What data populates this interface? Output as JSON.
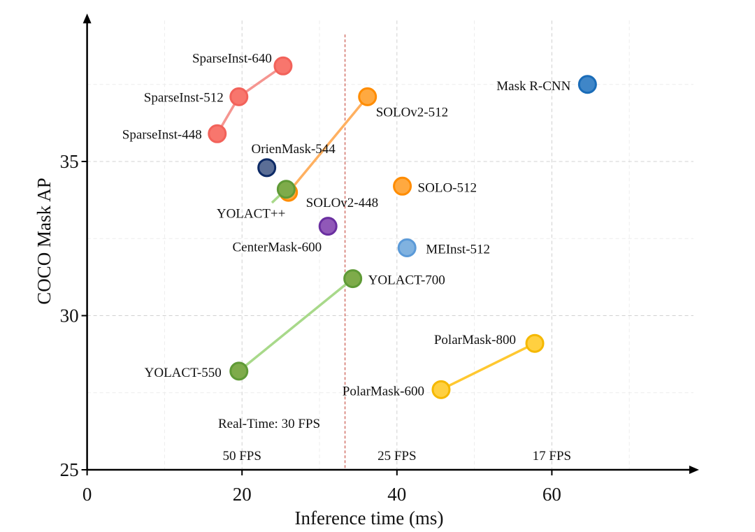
{
  "chart_data": {
    "type": "scatter",
    "title": "",
    "xlabel": "Inference time (ms)",
    "ylabel": "COCO Mask AP",
    "xlim": [
      0,
      79
    ],
    "ylim": [
      25,
      39.8
    ],
    "x_ticks": [
      "0",
      "20",
      "40",
      "60"
    ],
    "y_ticks": [
      "25",
      "30",
      "35"
    ],
    "grid": true,
    "legend": "none",
    "realtime_line": {
      "x": 33.3,
      "label": "Real-Time: 30 FPS",
      "color": "#c0392b"
    },
    "fps_labels": [
      {
        "x": 20,
        "label": "50 FPS"
      },
      {
        "x": 40,
        "label": "25 FPS"
      },
      {
        "x": 60,
        "label": "17 FPS"
      }
    ],
    "series": [
      {
        "color": "#f8766d",
        "stroke": "#f2625a",
        "line": "#f59590",
        "points": [
          {
            "label": "SparseInst-448",
            "x": 16.8,
            "y": 35.9
          },
          {
            "label": "SparseInst-512",
            "x": 19.6,
            "y": 37.1
          },
          {
            "label": "SparseInst-640",
            "x": 25.3,
            "y": 38.1
          }
        ]
      },
      {
        "color": "#3f86c8",
        "stroke": "#1a6cb8",
        "line": null,
        "points": [
          {
            "label": "Mask R-CNN",
            "x": 64.6,
            "y": 37.5
          }
        ]
      },
      {
        "color": "#ffa940",
        "stroke": "#ff8c00",
        "line": "#ffb060",
        "points": [
          {
            "label": "SOLOv2-448",
            "x": 26.0,
            "y": 34.0
          },
          {
            "label": "SOLOv2-512",
            "x": 36.2,
            "y": 37.1
          }
        ]
      },
      {
        "color": "#5b6e96",
        "stroke": "#0d2a66",
        "line": null,
        "points": [
          {
            "label": "OrienMask-544",
            "x": 23.2,
            "y": 34.8
          }
        ]
      },
      {
        "color": "#7eab4a",
        "stroke": "#5f9a36",
        "line": null,
        "points": [
          {
            "label": "YOLACT++",
            "x": 25.7,
            "y": 34.1
          }
        ]
      },
      {
        "color": "#ffa940",
        "stroke": "#ff8c00",
        "line": null,
        "points": [
          {
            "label": "SOLO-512",
            "x": 40.7,
            "y": 34.2
          }
        ]
      },
      {
        "color": "#9058b8",
        "stroke": "#6a2fa0",
        "line": null,
        "points": [
          {
            "label": "CenterMask-600",
            "x": 31.1,
            "y": 32.9
          }
        ]
      },
      {
        "color": "#80b2e0",
        "stroke": "#5b9ad8",
        "line": null,
        "points": [
          {
            "label": "MEInst-512",
            "x": 41.3,
            "y": 32.2
          }
        ]
      },
      {
        "color": "#7eab4a",
        "stroke": "#5f9a36",
        "line": "#a8d98a",
        "points": [
          {
            "label": "YOLACT-550",
            "x": 19.6,
            "y": 28.2
          },
          {
            "label": "YOLACT-700",
            "x": 34.3,
            "y": 31.2
          }
        ]
      },
      {
        "color": "#ffd040",
        "stroke": "#f5b800",
        "line": "#ffc830",
        "points": [
          {
            "label": "PolarMask-600",
            "x": 45.7,
            "y": 27.6
          },
          {
            "label": "PolarMask-800",
            "x": 57.8,
            "y": 29.1
          }
        ]
      }
    ]
  }
}
